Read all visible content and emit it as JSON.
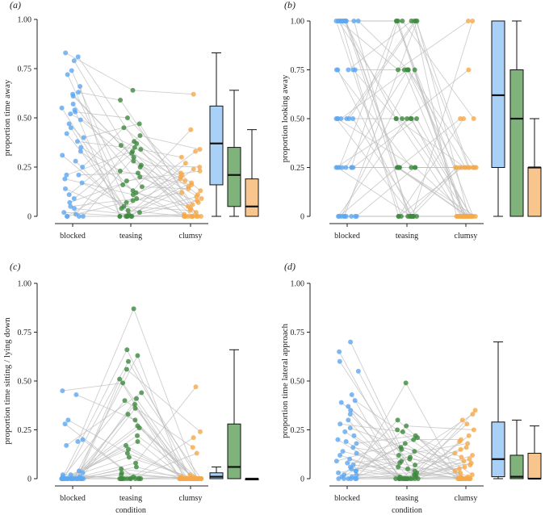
{
  "colors": {
    "blocked": "#5ea8f0",
    "teasing": "#3f8a3f",
    "clumsy": "#f5a94a",
    "box_blocked": "#a9d0f7",
    "box_teasing": "#7fb37b",
    "box_clumsy": "#f8c58d",
    "line": "#bdbdbd"
  },
  "chart_data": [
    {
      "type": "scatter",
      "panel_label": "(a)",
      "ylabel": "proportion time away",
      "xlabel": "",
      "categories": [
        "blocked",
        "teasing",
        "clumsy"
      ],
      "ylim": [
        0,
        1
      ],
      "yticks": [
        "0",
        "0.25",
        "0.50",
        "0.75",
        "1.00"
      ],
      "series": [
        {
          "name": "blocked",
          "values": [
            0.83,
            0.81,
            0.79,
            0.74,
            0.72,
            0.66,
            0.63,
            0.62,
            0.61,
            0.57,
            0.55,
            0.54,
            0.53,
            0.52,
            0.49,
            0.47,
            0.45,
            0.42,
            0.4,
            0.38,
            0.35,
            0.33,
            0.31,
            0.28,
            0.25,
            0.21,
            0.21,
            0.19,
            0.17,
            0.14,
            0.11,
            0.09,
            0.07,
            0.05,
            0.04,
            0.02,
            0.01,
            0,
            0,
            0,
            0
          ]
        },
        {
          "name": "teasing",
          "values": [
            0.64,
            0.59,
            0.5,
            0.47,
            0.45,
            0.41,
            0.38,
            0.37,
            0.36,
            0.35,
            0.34,
            0.33,
            0.32,
            0.3,
            0.28,
            0.26,
            0.25,
            0.23,
            0.22,
            0.2,
            0.18,
            0.16,
            0.15,
            0.13,
            0.12,
            0.11,
            0.09,
            0.08,
            0.07,
            0.05,
            0.04,
            0.03,
            0.02,
            0.01,
            0,
            0,
            0,
            0,
            0,
            0,
            0
          ]
        },
        {
          "name": "clumsy",
          "values": [
            0.62,
            0.44,
            0.34,
            0.33,
            0.3,
            0.27,
            0.25,
            0.24,
            0.23,
            0.22,
            0.21,
            0.2,
            0.19,
            0.18,
            0.17,
            0.16,
            0.15,
            0.14,
            0.13,
            0.12,
            0.11,
            0.1,
            0.09,
            0.08,
            0.07,
            0.06,
            0.05,
            0.04,
            0.03,
            0.02,
            0.01,
            0,
            0,
            0,
            0,
            0,
            0,
            0,
            0,
            0,
            0
          ]
        }
      ],
      "boxes": [
        {
          "name": "blocked",
          "min": 0,
          "q1": 0.16,
          "median": 0.37,
          "q3": 0.56,
          "max": 0.83
        },
        {
          "name": "teasing",
          "min": 0,
          "q1": 0.05,
          "median": 0.21,
          "q3": 0.35,
          "max": 0.64
        },
        {
          "name": "clumsy",
          "min": 0,
          "q1": 0,
          "median": 0.05,
          "q3": 0.19,
          "max": 0.44
        }
      ]
    },
    {
      "type": "scatter",
      "panel_label": "(b)",
      "ylabel": "proportion looking away",
      "xlabel": "",
      "categories": [
        "blocked",
        "teasing",
        "clumsy"
      ],
      "ylim": [
        0,
        1
      ],
      "yticks": [
        "0",
        "0.25",
        "0.50",
        "0.75",
        "1.00"
      ],
      "series": [
        {
          "name": "blocked",
          "values": [
            1,
            1,
            1,
            1,
            1,
            1,
            1,
            1,
            1,
            1,
            1,
            1,
            0.75,
            0.75,
            0.75,
            0.75,
            0.75,
            0.5,
            0.5,
            0.5,
            0.5,
            0.5,
            0.5,
            0.5,
            0.25,
            0.25,
            0.25,
            0.25,
            0.25,
            0.25,
            0.25,
            0.25,
            0,
            0,
            0,
            0,
            0,
            0,
            0,
            0,
            0
          ]
        },
        {
          "name": "teasing",
          "values": [
            1,
            1,
            1,
            1,
            1,
            1,
            1,
            1,
            0.75,
            0.75,
            0.75,
            0.75,
            0.75,
            0.75,
            0.5,
            0.5,
            0.5,
            0.5,
            0.5,
            0.5,
            0.5,
            0.25,
            0.25,
            0.25,
            0.25,
            0.25,
            0.25,
            0.25,
            0.25,
            0,
            0,
            0,
            0,
            0,
            0,
            0,
            0,
            0,
            0,
            0,
            0
          ]
        },
        {
          "name": "clumsy",
          "values": [
            1,
            1,
            0.75,
            0.5,
            0.5,
            0.5,
            0.25,
            0.25,
            0.25,
            0.25,
            0.25,
            0.25,
            0.25,
            0.25,
            0.25,
            0.25,
            0.25,
            0.25,
            0,
            0,
            0,
            0,
            0,
            0,
            0,
            0,
            0,
            0,
            0,
            0,
            0,
            0,
            0,
            0,
            0,
            0,
            0,
            0,
            0,
            0,
            0
          ]
        }
      ],
      "boxes": [
        {
          "name": "blocked",
          "min": 0,
          "q1": 0.25,
          "median": 0.62,
          "q3": 1.0,
          "max": 1.0
        },
        {
          "name": "teasing",
          "min": 0,
          "q1": 0,
          "median": 0.5,
          "q3": 0.75,
          "max": 1.0
        },
        {
          "name": "clumsy",
          "min": 0,
          "q1": 0,
          "median": 0.25,
          "q3": 0.25,
          "max": 0.5
        }
      ]
    },
    {
      "type": "scatter",
      "panel_label": "(c)",
      "ylabel": "proportion time sitting / lying down",
      "xlabel": "condition",
      "categories": [
        "blocked",
        "teasing",
        "clumsy"
      ],
      "ylim": [
        0,
        1
      ],
      "yticks": [
        "0",
        "0.25",
        "0.50",
        "0.75",
        "1.00"
      ],
      "series": [
        {
          "name": "blocked",
          "values": [
            0.45,
            0.43,
            0.3,
            0.28,
            0.2,
            0.19,
            0.17,
            0.04,
            0.03,
            0.02,
            0.02,
            0.01,
            0.01,
            0,
            0,
            0,
            0,
            0,
            0,
            0,
            0,
            0,
            0,
            0,
            0,
            0,
            0,
            0,
            0,
            0,
            0,
            0,
            0,
            0,
            0,
            0,
            0,
            0,
            0,
            0,
            0
          ]
        },
        {
          "name": "teasing",
          "values": [
            0.87,
            0.66,
            0.63,
            0.6,
            0.56,
            0.51,
            0.49,
            0.44,
            0.41,
            0.4,
            0.38,
            0.36,
            0.33,
            0.3,
            0.27,
            0.26,
            0.22,
            0.19,
            0.17,
            0.15,
            0.13,
            0.11,
            0.08,
            0.06,
            0.05,
            0.03,
            0.02,
            0.01,
            0,
            0,
            0,
            0,
            0,
            0,
            0,
            0,
            0,
            0,
            0,
            0,
            0
          ]
        },
        {
          "name": "clumsy",
          "values": [
            0.47,
            0.24,
            0.21,
            0.16,
            0.13,
            0.02,
            0.01,
            0.01,
            0,
            0,
            0,
            0,
            0,
            0,
            0,
            0,
            0,
            0,
            0,
            0,
            0,
            0,
            0,
            0,
            0,
            0,
            0,
            0,
            0,
            0,
            0,
            0,
            0,
            0,
            0,
            0,
            0,
            0,
            0,
            0,
            0
          ]
        }
      ],
      "boxes": [
        {
          "name": "blocked",
          "min": 0,
          "q1": 0,
          "median": 0.01,
          "q3": 0.03,
          "max": 0.06
        },
        {
          "name": "teasing",
          "min": 0,
          "q1": 0,
          "median": 0.06,
          "q3": 0.28,
          "max": 0.66
        },
        {
          "name": "clumsy",
          "min": 0,
          "q1": 0,
          "median": 0,
          "q3": 0,
          "max": 0
        }
      ]
    },
    {
      "type": "scatter",
      "panel_label": "(d)",
      "ylabel": "proportion time lateral approach",
      "xlabel": "condition",
      "categories": [
        "blocked",
        "teasing",
        "clumsy"
      ],
      "ylim": [
        0,
        1
      ],
      "yticks": [
        "0",
        "0.25",
        "0.50",
        "0.75",
        "1.00"
      ],
      "series": [
        {
          "name": "blocked",
          "values": [
            0.7,
            0.65,
            0.6,
            0.55,
            0.43,
            0.4,
            0.39,
            0.37,
            0.35,
            0.33,
            0.3,
            0.28,
            0.26,
            0.24,
            0.22,
            0.2,
            0.19,
            0.18,
            0.16,
            0.14,
            0.13,
            0.12,
            0.1,
            0.09,
            0.08,
            0.07,
            0.06,
            0.05,
            0.04,
            0.04,
            0.03,
            0.02,
            0.02,
            0.01,
            0.01,
            0,
            0,
            0,
            0,
            0,
            0
          ]
        },
        {
          "name": "teasing",
          "values": [
            0.49,
            0.3,
            0.27,
            0.25,
            0.24,
            0.22,
            0.21,
            0.2,
            0.18,
            0.16,
            0.15,
            0.14,
            0.12,
            0.11,
            0.1,
            0.09,
            0.08,
            0.07,
            0.06,
            0.05,
            0.04,
            0.03,
            0.02,
            0.02,
            0.01,
            0.01,
            0,
            0,
            0,
            0,
            0,
            0,
            0,
            0,
            0,
            0,
            0,
            0,
            0,
            0,
            0
          ]
        },
        {
          "name": "clumsy",
          "values": [
            0.35,
            0.33,
            0.3,
            0.28,
            0.25,
            0.22,
            0.2,
            0.19,
            0.18,
            0.16,
            0.15,
            0.13,
            0.12,
            0.11,
            0.1,
            0.09,
            0.08,
            0.07,
            0.06,
            0.05,
            0.04,
            0.03,
            0.02,
            0.01,
            0.01,
            0,
            0,
            0,
            0,
            0,
            0,
            0,
            0,
            0,
            0,
            0,
            0,
            0,
            0,
            0,
            0
          ]
        }
      ],
      "boxes": [
        {
          "name": "blocked",
          "min": 0,
          "q1": 0.01,
          "median": 0.1,
          "q3": 0.29,
          "max": 0.7
        },
        {
          "name": "teasing",
          "min": 0,
          "q1": 0,
          "median": 0.01,
          "q3": 0.12,
          "max": 0.3
        },
        {
          "name": "clumsy",
          "min": 0,
          "q1": 0,
          "median": 0,
          "q3": 0.13,
          "max": 0.27
        }
      ]
    }
  ]
}
